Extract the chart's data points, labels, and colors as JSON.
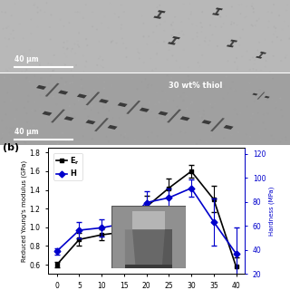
{
  "panel_b_label": "(b)",
  "x_values": [
    0,
    5,
    10,
    15,
    20,
    25,
    30,
    35,
    40
  ],
  "Er_values": [
    0.6,
    0.87,
    0.92,
    0.95,
    1.22,
    1.42,
    1.6,
    1.3,
    0.58
  ],
  "Er_errors": [
    0.03,
    0.07,
    0.06,
    0.06,
    0.12,
    0.1,
    0.07,
    0.14,
    0.1
  ],
  "H_values": [
    39.0,
    56.5,
    58.5,
    62.0,
    79.5,
    83.5,
    91.5,
    63.5,
    37.0
  ],
  "H_errors": [
    2.5,
    7.0,
    7.0,
    5.5,
    9.5,
    7.5,
    7.0,
    19.5,
    22.0
  ],
  "Er_color": "#000000",
  "H_color": "#0000cc",
  "left_ylabel": "Reduced Young's modulus (GPa)",
  "right_ylabel": "Hardness (MPa)",
  "ylim_left": [
    0.5,
    1.85
  ],
  "ylim_right": [
    20,
    125
  ],
  "yticks_left": [
    0.6,
    0.8,
    1.0,
    1.2,
    1.4,
    1.6,
    1.8
  ],
  "yticks_right": [
    20,
    40,
    60,
    80,
    100,
    120
  ],
  "top_bg_upper": "#aaaaaa",
  "top_bg_lower": "#999999",
  "sem_label_1": "40 μm",
  "sem_label_2": "30 wt% thiol",
  "sem_label_3": "40 μm"
}
